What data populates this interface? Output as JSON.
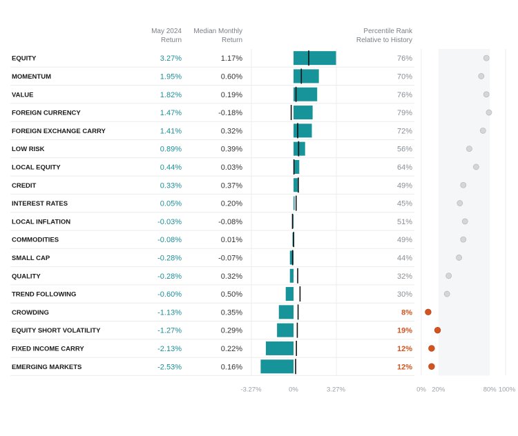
{
  "header": {
    "may_return_line1": "May 2024",
    "may_return_line2": "Return",
    "median_line1": "Median Monthly",
    "median_line2": "Return",
    "rank_line1": "Percentile Rank",
    "rank_line2": "Relative to History"
  },
  "colors": {
    "bar": "#17939a",
    "return_text": "#1b8f97",
    "value_text": "#333333",
    "rank_text": "#8a8f94",
    "highlight": "#d4541f",
    "dot_gray": "#d4d6d8",
    "dot_gray_stroke": "#b9bcbf",
    "median_marker": "#111111"
  },
  "chart_data": {
    "type": "bar",
    "orientation": "horizontal",
    "categories": [
      "EQUITY",
      "MOMENTUM",
      "VALUE",
      "FOREIGN CURRENCY",
      "FOREIGN EXCHANGE CARRY",
      "LOW RISK",
      "LOCAL EQUITY",
      "CREDIT",
      "INTEREST RATES",
      "LOCAL INFLATION",
      "COMMODITIES",
      "SMALL CAP",
      "QUALITY",
      "TREND FOLLOWING",
      "CROWDING",
      "EQUITY SHORT VOLATILITY",
      "FIXED INCOME CARRY",
      "EMERGING MARKETS"
    ],
    "series": [
      {
        "name": "May 2024 Return",
        "labels": [
          "3.27%",
          "1.95%",
          "1.82%",
          "1.47%",
          "1.41%",
          "0.89%",
          "0.44%",
          "0.33%",
          "0.05%",
          "-0.03%",
          "-0.08%",
          "-0.28%",
          "-0.28%",
          "-0.60%",
          "-1.13%",
          "-1.27%",
          "-2.13%",
          "-2.53%"
        ],
        "values": [
          3.27,
          1.95,
          1.82,
          1.47,
          1.41,
          0.89,
          0.44,
          0.33,
          0.05,
          -0.03,
          -0.08,
          -0.28,
          -0.28,
          -0.6,
          -1.13,
          -1.27,
          -2.13,
          -2.53
        ]
      },
      {
        "name": "Median Monthly Return",
        "labels": [
          "1.17%",
          "0.60%",
          "0.19%",
          "-0.18%",
          "0.32%",
          "0.39%",
          "0.03%",
          "0.37%",
          "0.20%",
          "-0.08%",
          "0.01%",
          "-0.07%",
          "0.32%",
          "0.50%",
          "0.35%",
          "0.29%",
          "0.22%",
          "0.16%"
        ],
        "values": [
          1.17,
          0.6,
          0.19,
          -0.18,
          0.32,
          0.39,
          0.03,
          0.37,
          0.2,
          -0.08,
          0.01,
          -0.07,
          0.32,
          0.5,
          0.35,
          0.29,
          0.22,
          0.16
        ]
      },
      {
        "name": "Percentile Rank Relative to History",
        "labels": [
          "76%",
          "70%",
          "76%",
          "79%",
          "72%",
          "56%",
          "64%",
          "49%",
          "45%",
          "51%",
          "49%",
          "44%",
          "32%",
          "30%",
          "8%",
          "19%",
          "12%",
          "12%"
        ],
        "values": [
          76,
          70,
          76,
          79,
          72,
          56,
          64,
          49,
          45,
          51,
          49,
          44,
          32,
          30,
          8,
          19,
          12,
          12
        ],
        "highlighted": [
          false,
          false,
          false,
          false,
          false,
          false,
          false,
          false,
          false,
          false,
          false,
          false,
          false,
          false,
          true,
          true,
          true,
          true
        ]
      }
    ],
    "bar_axis": {
      "ticks": [
        "-3.27%",
        "0%",
        "3.27%"
      ],
      "range": [
        -3.27,
        3.27
      ]
    },
    "rank_axis": {
      "ticks": [
        "0%",
        "20%",
        "80%",
        "100%"
      ],
      "range": [
        0,
        100
      ],
      "shaded_band": [
        20,
        80
      ]
    }
  }
}
